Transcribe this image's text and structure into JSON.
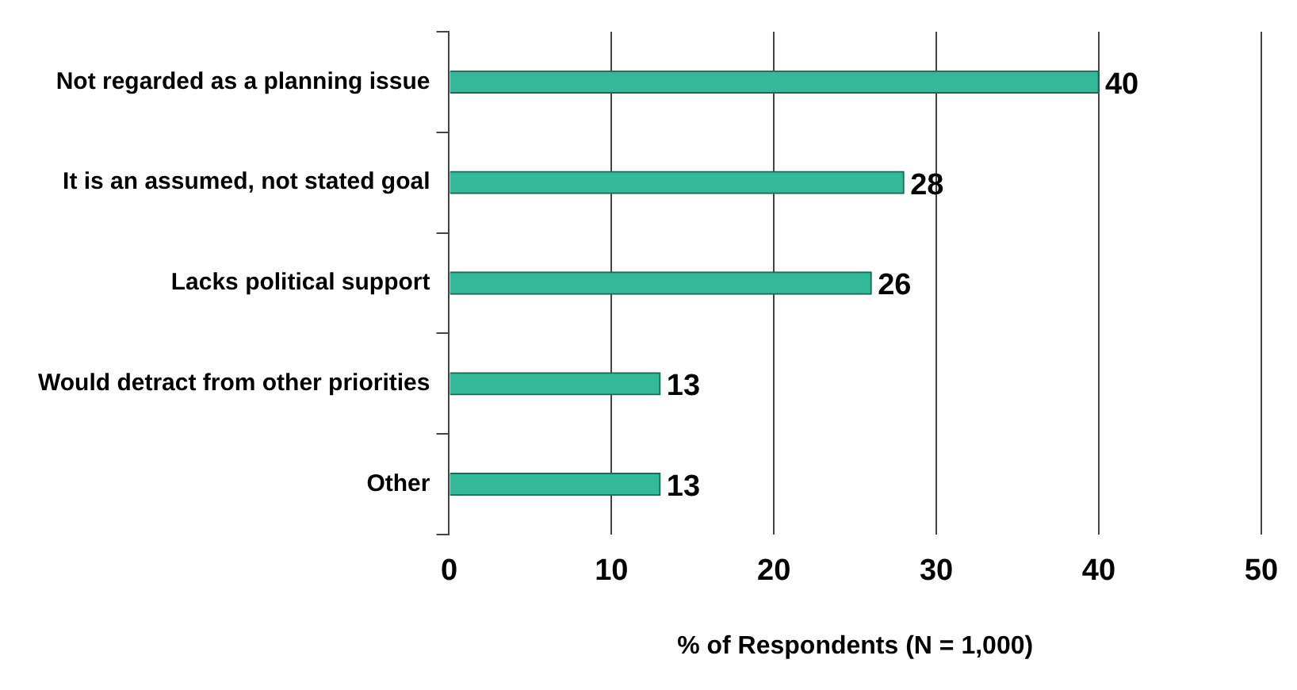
{
  "chart_data": {
    "type": "bar",
    "orientation": "horizontal",
    "categories": [
      "Not regarded as a planning issue",
      "It is an assumed, not stated goal",
      "Lacks political support",
      "Would detract from other priorities",
      "Other"
    ],
    "values": [
      40,
      28,
      26,
      13,
      13
    ],
    "color": "#33bb99",
    "xlabel": "% of Respondents (N = 1,000)",
    "xlim": [
      0,
      50
    ],
    "xticks": [
      0,
      10,
      20,
      30,
      40,
      50
    ],
    "grid": "x",
    "data_labels": true
  }
}
